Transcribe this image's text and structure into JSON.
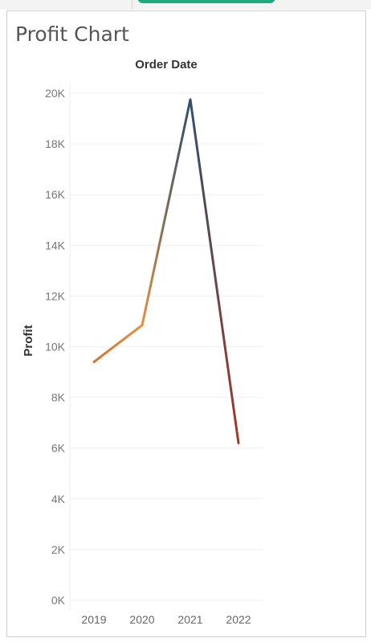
{
  "chart_data": {
    "type": "line",
    "title": "Profit Chart",
    "xlabel": "Order Date",
    "ylabel": "Profit",
    "x": [
      "2019",
      "2020",
      "2021",
      "2022"
    ],
    "y": [
      9400,
      10850,
      19750,
      6200
    ],
    "ylim": [
      0,
      20000
    ],
    "yticks": [
      0,
      2000,
      4000,
      6000,
      8000,
      10000,
      12000,
      14000,
      16000,
      18000,
      20000
    ],
    "ytick_labels": [
      "0K",
      "2K",
      "4K",
      "6K",
      "8K",
      "10K",
      "12K",
      "14K",
      "16K",
      "18K",
      "20K"
    ],
    "grid": true,
    "legend": "none",
    "colors": [
      "#d6722c",
      "#e89040",
      "#2f5070",
      "#a33a26"
    ]
  }
}
